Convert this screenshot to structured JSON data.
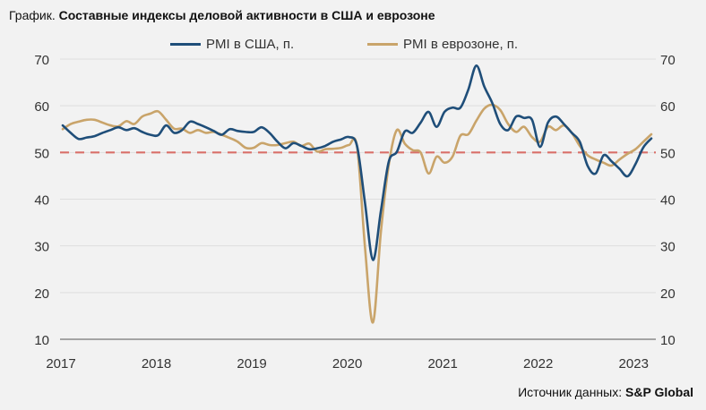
{
  "title_prefix": "График.",
  "title_main": "Составные индексы деловой активности в США и еврозоне",
  "source_label": "Источник данных:",
  "source_name": "S&P Global",
  "colors": {
    "us": "#1f4e79",
    "eu": "#c9a46a",
    "threshold": "#d9706a",
    "grid": "#dedede",
    "axis": "#8a8a8a"
  },
  "chart_data": {
    "type": "line",
    "title": "Составные индексы деловой активности в США и еврозоне",
    "xlabel": "",
    "ylabel": "",
    "ylim": [
      10,
      70
    ],
    "yticks": [
      "10",
      "20",
      "30",
      "40",
      "50",
      "60",
      "70"
    ],
    "xticks": [
      "2017",
      "2018",
      "2019",
      "2020",
      "2021",
      "2022",
      "2023"
    ],
    "x_start": "2017-01",
    "x_end": "2023-03",
    "frequency": "monthly",
    "grid": true,
    "legend_position": "top-center",
    "threshold": 50,
    "series": [
      {
        "name": "PMI в США, п.",
        "key": "us",
        "values": [
          55.8,
          54.2,
          52.9,
          53.2,
          53.5,
          54.2,
          54.8,
          55.4,
          54.8,
          55.2,
          54.4,
          53.8,
          53.7,
          55.8,
          54.2,
          54.8,
          56.6,
          56.1,
          55.4,
          54.6,
          53.8,
          55.0,
          54.6,
          54.4,
          54.4,
          55.4,
          54.2,
          52.3,
          50.9,
          52.0,
          51.4,
          50.7,
          50.9,
          51.4,
          52.3,
          52.8,
          53.3,
          51.4,
          39.2,
          27.0,
          37.5,
          48.1,
          50.1,
          54.5,
          54.2,
          56.4,
          58.7,
          55.5,
          58.7,
          59.6,
          59.6,
          63.5,
          68.6,
          64.1,
          60.6,
          56.1,
          54.8,
          57.7,
          57.4,
          57.0,
          51.2,
          56.4,
          57.7,
          56.1,
          54.2,
          52.3,
          47.1,
          45.5,
          49.4,
          48.1,
          46.5,
          44.9,
          47.5,
          51.1,
          53.0
        ]
      },
      {
        "name": "PMI в еврозоне, п.",
        "key": "eu",
        "values": [
          55.0,
          56.1,
          56.6,
          57.0,
          57.0,
          56.4,
          55.8,
          55.6,
          56.7,
          56.1,
          57.7,
          58.3,
          58.8,
          57.0,
          55.1,
          55.1,
          54.2,
          54.8,
          54.2,
          54.4,
          53.8,
          53.1,
          52.3,
          51.0,
          51.0,
          52.0,
          51.6,
          51.6,
          52.0,
          52.3,
          51.4,
          51.9,
          50.2,
          50.7,
          50.8,
          51.0,
          51.6,
          51.3,
          29.7,
          13.6,
          33.0,
          47.5,
          54.8,
          51.9,
          50.5,
          50.0,
          45.5,
          49.1,
          47.8,
          49.1,
          53.6,
          53.9,
          56.8,
          59.4,
          60.2,
          59.1,
          56.1,
          54.4,
          55.5,
          53.3,
          52.3,
          55.5,
          54.8,
          55.8,
          54.2,
          51.4,
          49.4,
          48.5,
          47.8,
          47.2,
          48.5,
          49.7,
          50.7,
          52.3,
          53.9
        ]
      }
    ]
  }
}
